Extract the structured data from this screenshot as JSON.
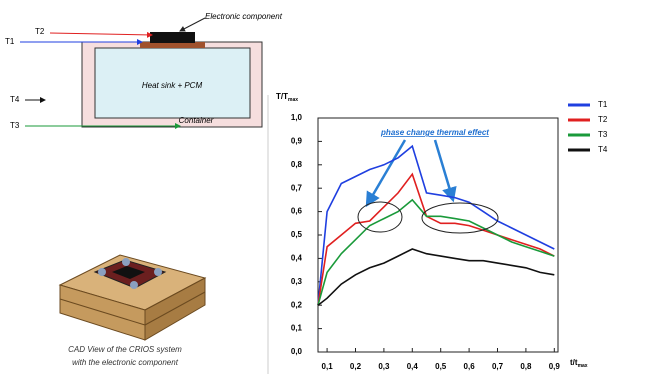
{
  "diagram": {
    "component_label": "Electronic component",
    "t1": "T1",
    "t2": "T2",
    "t3": "T3",
    "t4": "T4",
    "heat_sink_label": "Heat sink + PCM",
    "container_label": "Container"
  },
  "cad_caption": [
    "CAD View of the CRIOS system",
    "with the electronic component"
  ],
  "chart_data": {
    "type": "line",
    "ylabel": {
      "main": "T/T",
      "sub": "max"
    },
    "xlabel": {
      "main": "t/t",
      "sub": "max"
    },
    "annotation": "phase change thermal effect",
    "x": [
      0.068,
      0.1,
      0.15,
      0.2,
      0.25,
      0.3,
      0.35,
      0.4,
      0.45,
      0.5,
      0.55,
      0.6,
      0.65,
      0.7,
      0.75,
      0.8,
      0.85,
      0.9
    ],
    "series": [
      {
        "name": "T1",
        "color": "#1f3fe0",
        "values": [
          0.2,
          0.6,
          0.72,
          0.75,
          0.78,
          0.8,
          0.83,
          0.88,
          0.68,
          0.67,
          0.66,
          0.64,
          0.6,
          0.56,
          0.53,
          0.5,
          0.47,
          0.44
        ]
      },
      {
        "name": "T2",
        "color": "#e02020",
        "values": [
          0.2,
          0.45,
          0.5,
          0.55,
          0.56,
          0.62,
          0.68,
          0.76,
          0.58,
          0.55,
          0.55,
          0.54,
          0.52,
          0.5,
          0.48,
          0.46,
          0.44,
          0.41
        ]
      },
      {
        "name": "T3",
        "color": "#1a9a3a",
        "values": [
          0.2,
          0.34,
          0.42,
          0.48,
          0.54,
          0.57,
          0.6,
          0.65,
          0.58,
          0.58,
          0.57,
          0.56,
          0.53,
          0.5,
          0.47,
          0.45,
          0.43,
          0.41
        ]
      },
      {
        "name": "T4",
        "color": "#111111",
        "values": [
          0.2,
          0.23,
          0.29,
          0.33,
          0.36,
          0.38,
          0.41,
          0.44,
          0.42,
          0.41,
          0.4,
          0.39,
          0.39,
          0.38,
          0.37,
          0.36,
          0.34,
          0.33
        ]
      }
    ],
    "xlim": [
      0.068,
      0.913
    ],
    "ylim": [
      0,
      1
    ],
    "xticks": [
      {
        "value": 0.1,
        "label": "0,1"
      },
      {
        "value": 0.2,
        "label": "0,2"
      },
      {
        "value": 0.3,
        "label": "0,3"
      },
      {
        "value": 0.4,
        "label": "0,4"
      },
      {
        "value": 0.5,
        "label": "0,5"
      },
      {
        "value": 0.6,
        "label": "0,6"
      },
      {
        "value": 0.7,
        "label": "0,7"
      },
      {
        "value": 0.8,
        "label": "0,8"
      },
      {
        "value": 0.9,
        "label": "0,9"
      }
    ],
    "yticks": [
      {
        "value": 0,
        "label": "0,0"
      },
      {
        "value": 0.1,
        "label": "0,1"
      },
      {
        "value": 0.2,
        "label": "0,2"
      },
      {
        "value": 0.3,
        "label": "0,3"
      },
      {
        "value": 0.4,
        "label": "0,4"
      },
      {
        "value": 0.5,
        "label": "0,5"
      },
      {
        "value": 0.6,
        "label": "0,6"
      },
      {
        "value": 0.7,
        "label": "0,7"
      },
      {
        "value": 0.8,
        "label": "0,8"
      },
      {
        "value": 0.9,
        "label": "0,9"
      },
      {
        "value": 1,
        "label": "1,0"
      }
    ],
    "legend": "top-right"
  }
}
